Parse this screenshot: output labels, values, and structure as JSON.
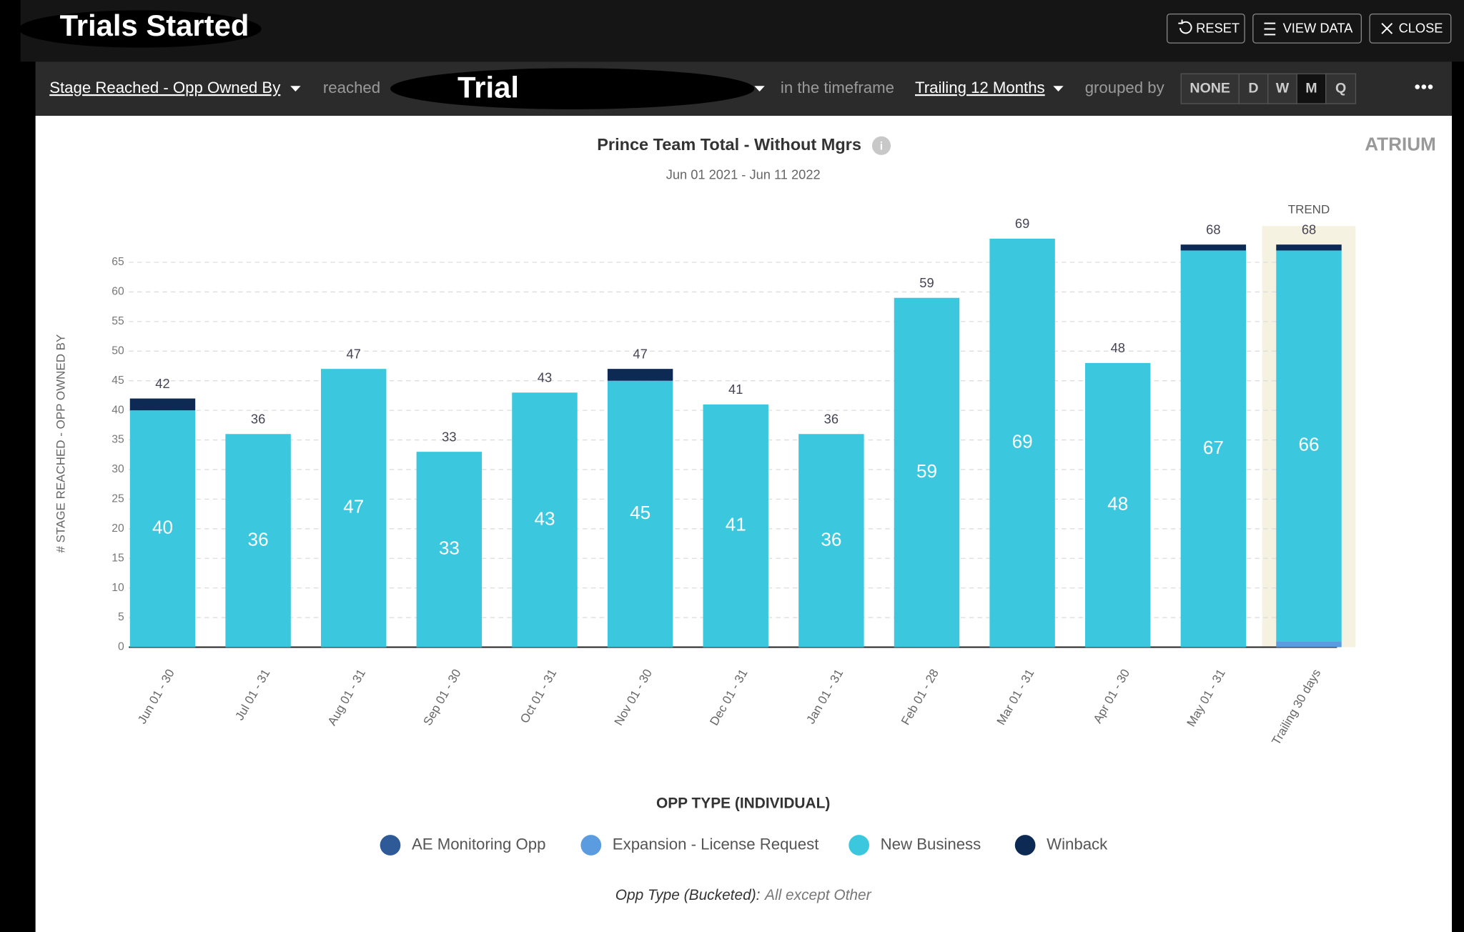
{
  "ui": {
    "header_title": "Trials Started",
    "buttons": [
      "RESET",
      "VIEW DATA",
      "CLOSE"
    ],
    "filter": {
      "field": "Stage Reached - Opp Owned By",
      "reached": "reached",
      "stage": "Trial",
      "timeframe_label": "in the timeframe",
      "timeframe": "Trailing 12 Months",
      "grouped_label": "grouped by",
      "groupings": [
        "NONE",
        "D",
        "W",
        "M",
        "Q"
      ]
    },
    "logo": "ATRIUM",
    "filter_note": {
      "label": "Opp Type (Bucketed):",
      "value": "All except Other"
    }
  },
  "chart_data": {
    "type": "stacked_bar",
    "title": "Prince Team Total - Without Mgrs",
    "subtitle": "Jun 01 2021 - Jun 11 2022",
    "y_label": "# STAGE REACHED - OPP OWNED BY",
    "trend_label": "TREND",
    "legend_title": "OPP TYPE (INDIVIDUAL)",
    "categories": [
      "Jun 01 - 30",
      "Jul 01 - 31",
      "Aug 01 - 31",
      "Sep 01 - 30",
      "Oct 01 - 31",
      "Nov 01 - 30",
      "Dec 01 - 31",
      "Jan 01 - 31",
      "Feb 01 - 28",
      "Mar 01 - 31",
      "Apr 01 - 30",
      "May 01 - 31",
      "Trailing 30 days"
    ],
    "series": [
      {
        "name": "AE Monitoring Opp",
        "color": "#2e5a97",
        "values": [
          0,
          0,
          0,
          0,
          0,
          0,
          0,
          0,
          0,
          0,
          0,
          0,
          0
        ]
      },
      {
        "name": "Expansion - License Request",
        "color": "#5b9be0",
        "values": [
          0,
          0,
          0,
          0,
          0,
          0,
          0,
          0,
          0,
          0,
          0,
          0,
          1
        ]
      },
      {
        "name": "New Business",
        "color": "#3bc8de",
        "values": [
          40,
          36,
          47,
          33,
          43,
          45,
          41,
          36,
          59,
          69,
          48,
          67,
          66
        ]
      },
      {
        "name": "Winback",
        "color": "#0d2a55",
        "values": [
          2,
          0,
          0,
          0,
          0,
          2,
          0,
          0,
          0,
          0,
          0,
          1,
          1
        ]
      }
    ],
    "totals": [
      42,
      36,
      47,
      33,
      43,
      47,
      41,
      36,
      59,
      69,
      48,
      68,
      68
    ],
    "ylim": [
      0,
      70
    ],
    "yticks": [
      0,
      5,
      10,
      15,
      20,
      25,
      30,
      35,
      40,
      45,
      50,
      55,
      60,
      65
    ],
    "grid": true
  }
}
